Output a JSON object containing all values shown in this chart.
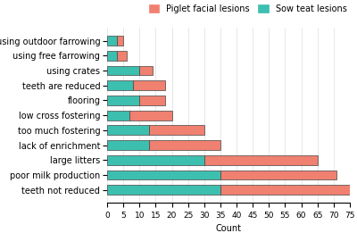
{
  "categories": [
    "teeth not reduced",
    "poor milk production",
    "large litters",
    "lack of enrichment",
    "too much fostering",
    "low cross fostering",
    "flooring",
    "teeth are reduced",
    "using crates",
    "using free farrowing",
    "using outdoor farrowing"
  ],
  "sow_teat": [
    35,
    35,
    30,
    13,
    13,
    7,
    10,
    8,
    10,
    3,
    3
  ],
  "piglet_facial": [
    40,
    36,
    35,
    22,
    17,
    13,
    8,
    10,
    4,
    3,
    2
  ],
  "color_piglet": "#F08070",
  "color_sow": "#3DBFB0",
  "xlabel": "Count",
  "legend_piglet": "Piglet facial lesions",
  "legend_sow": "Sow teat lesions",
  "xlim": [
    0,
    75
  ],
  "xticks": [
    0,
    5,
    10,
    15,
    20,
    25,
    30,
    35,
    40,
    45,
    50,
    55,
    60,
    65,
    70,
    75
  ],
  "bg_color": "#FFFFFF",
  "label_fontsize": 7,
  "tick_fontsize": 6.5
}
